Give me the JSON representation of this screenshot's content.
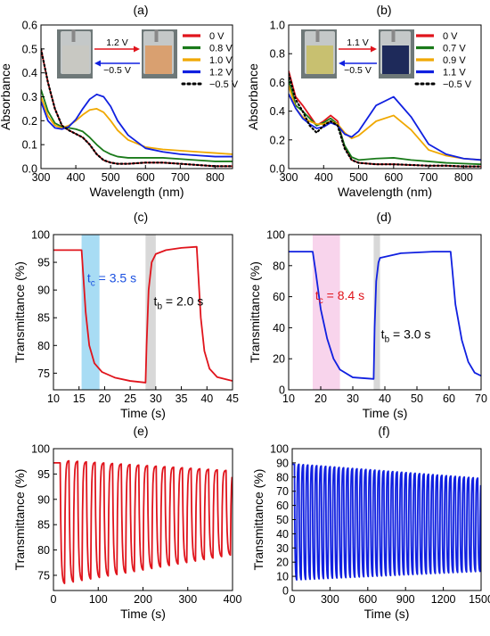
{
  "chart_data": [
    {
      "panel": "(a)",
      "type": "line",
      "xlabel": "Wavelength (nm)",
      "ylabel": "Absorbance",
      "xlim": [
        300,
        850
      ],
      "ylim": [
        0,
        0.6
      ],
      "xticks": [
        300,
        400,
        500,
        600,
        700,
        800
      ],
      "yticks": [
        0.0,
        0.1,
        0.2,
        0.3,
        0.4,
        0.5,
        0.6
      ],
      "ytick_decimals": 1,
      "grid": false,
      "legend_position": "top-right",
      "inset": {
        "top_label": "1.2 V",
        "bottom_label": "−0.5 V",
        "colors": [
          "#c8c8c2",
          "#d9a070"
        ]
      },
      "series": [
        {
          "name": "0 V",
          "color": "#e0141c",
          "dotted": false,
          "x": [
            300,
            320,
            340,
            360,
            380,
            400,
            420,
            440,
            460,
            480,
            500,
            520,
            550,
            600,
            650,
            700,
            750,
            800,
            850
          ],
          "y": [
            0.5,
            0.36,
            0.25,
            0.18,
            0.16,
            0.145,
            0.13,
            0.1,
            0.06,
            0.035,
            0.025,
            0.02,
            0.02,
            0.025,
            0.025,
            0.02,
            0.015,
            0.01,
            0.01
          ]
        },
        {
          "name": "0.8 V",
          "color": "#1a7a1a",
          "dotted": false,
          "x": [
            300,
            320,
            340,
            360,
            380,
            400,
            420,
            440,
            460,
            480,
            500,
            520,
            550,
            600,
            650,
            700,
            750,
            800,
            850
          ],
          "y": [
            0.33,
            0.24,
            0.19,
            0.175,
            0.17,
            0.165,
            0.155,
            0.13,
            0.1,
            0.075,
            0.06,
            0.05,
            0.045,
            0.045,
            0.045,
            0.04,
            0.035,
            0.03,
            0.03
          ]
        },
        {
          "name": "1.0 V",
          "color": "#f0a800",
          "dotted": false,
          "x": [
            300,
            320,
            340,
            360,
            380,
            400,
            420,
            440,
            460,
            480,
            500,
            520,
            550,
            600,
            650,
            700,
            750,
            800,
            850
          ],
          "y": [
            0.3,
            0.22,
            0.18,
            0.17,
            0.18,
            0.2,
            0.225,
            0.245,
            0.25,
            0.235,
            0.2,
            0.16,
            0.12,
            0.09,
            0.08,
            0.075,
            0.07,
            0.065,
            0.06
          ]
        },
        {
          "name": "1.2 V",
          "color": "#1020e0",
          "dotted": false,
          "x": [
            300,
            320,
            340,
            360,
            380,
            400,
            420,
            440,
            460,
            480,
            500,
            520,
            550,
            600,
            650,
            700,
            750,
            800,
            850
          ],
          "y": [
            0.28,
            0.2,
            0.17,
            0.165,
            0.175,
            0.205,
            0.25,
            0.29,
            0.31,
            0.3,
            0.26,
            0.2,
            0.14,
            0.085,
            0.07,
            0.06,
            0.055,
            0.05,
            0.05
          ]
        },
        {
          "name": "−0.5 V",
          "color": "#000000",
          "dotted": true,
          "x": [
            300,
            320,
            340,
            360,
            380,
            400,
            420,
            440,
            460,
            480,
            500,
            520,
            550,
            600,
            650,
            700,
            750,
            800,
            850
          ],
          "y": [
            0.5,
            0.36,
            0.25,
            0.18,
            0.16,
            0.145,
            0.13,
            0.1,
            0.06,
            0.035,
            0.025,
            0.02,
            0.02,
            0.025,
            0.025,
            0.02,
            0.015,
            0.01,
            0.01
          ]
        }
      ]
    },
    {
      "panel": "(b)",
      "type": "line",
      "xlabel": "Wavelength (nm)",
      "ylabel": "Absorbance",
      "xlim": [
        300,
        850
      ],
      "ylim": [
        0,
        1.0
      ],
      "xticks": [
        300,
        400,
        500,
        600,
        700,
        800
      ],
      "yticks": [
        0.0,
        0.2,
        0.4,
        0.6,
        0.8,
        1.0
      ],
      "ytick_decimals": 1,
      "grid": false,
      "legend_position": "top-right",
      "inset": {
        "top_label": "1.1 V",
        "bottom_label": "−0.5 V",
        "colors": [
          "#c8c070",
          "#1e2a5a"
        ]
      },
      "series": [
        {
          "name": "0 V",
          "color": "#e0141c",
          "dotted": false,
          "x": [
            300,
            320,
            340,
            360,
            380,
            400,
            420,
            440,
            460,
            480,
            500,
            550,
            600,
            650,
            700,
            750,
            800,
            850
          ],
          "y": [
            0.68,
            0.5,
            0.44,
            0.37,
            0.3,
            0.33,
            0.37,
            0.33,
            0.15,
            0.06,
            0.04,
            0.03,
            0.03,
            0.025,
            0.02,
            0.02,
            0.015,
            0.015
          ]
        },
        {
          "name": "0.7 V",
          "color": "#1a7a1a",
          "dotted": false,
          "x": [
            300,
            320,
            340,
            360,
            380,
            400,
            420,
            440,
            460,
            480,
            500,
            550,
            600,
            650,
            700,
            750,
            800,
            850
          ],
          "y": [
            0.62,
            0.44,
            0.4,
            0.35,
            0.3,
            0.32,
            0.35,
            0.31,
            0.16,
            0.08,
            0.06,
            0.07,
            0.075,
            0.06,
            0.05,
            0.04,
            0.035,
            0.03
          ]
        },
        {
          "name": "0.9 V",
          "color": "#f0a800",
          "dotted": false,
          "x": [
            300,
            320,
            340,
            360,
            380,
            400,
            420,
            440,
            460,
            480,
            500,
            550,
            600,
            650,
            700,
            750,
            800,
            850
          ],
          "y": [
            0.58,
            0.42,
            0.36,
            0.33,
            0.31,
            0.31,
            0.33,
            0.31,
            0.25,
            0.21,
            0.23,
            0.33,
            0.37,
            0.27,
            0.13,
            0.09,
            0.07,
            0.06
          ]
        },
        {
          "name": "1.1 V",
          "color": "#1020e0",
          "dotted": false,
          "x": [
            300,
            320,
            340,
            360,
            380,
            400,
            420,
            440,
            460,
            480,
            500,
            550,
            600,
            650,
            700,
            750,
            800,
            850
          ],
          "y": [
            0.52,
            0.42,
            0.35,
            0.31,
            0.28,
            0.29,
            0.32,
            0.3,
            0.24,
            0.22,
            0.26,
            0.44,
            0.5,
            0.36,
            0.17,
            0.1,
            0.07,
            0.06
          ]
        },
        {
          "name": "−0.5 V",
          "color": "#000000",
          "dotted": true,
          "x": [
            300,
            320,
            340,
            360,
            380,
            400,
            420,
            440,
            460,
            480,
            500,
            550,
            600,
            650,
            700,
            750,
            800,
            850
          ],
          "y": [
            0.66,
            0.48,
            0.4,
            0.3,
            0.25,
            0.3,
            0.33,
            0.3,
            0.14,
            0.06,
            0.04,
            0.03,
            0.03,
            0.025,
            0.02,
            0.02,
            0.015,
            0.015
          ]
        }
      ]
    },
    {
      "panel": "(c)",
      "type": "line",
      "xlabel": "Time (s)",
      "ylabel": "Transmittance (%)",
      "xlim": [
        10,
        45
      ],
      "ylim": [
        72,
        100
      ],
      "xticks": [
        10,
        15,
        20,
        25,
        30,
        35,
        40,
        45
      ],
      "yticks": [
        75,
        80,
        85,
        90,
        95,
        100
      ],
      "ytick_decimals": 0,
      "grid": false,
      "bands": [
        {
          "from": 15.5,
          "to": 19.0,
          "color": "#a8dcf4"
        },
        {
          "from": 28.0,
          "to": 30.0,
          "color": "#d8d8d8"
        }
      ],
      "annotations": [
        {
          "main": "t",
          "sub": "c",
          "rest": " = 3.5 s",
          "color": "#1a50e0",
          "at": [
            16.6,
            91.4
          ]
        },
        {
          "main": "t",
          "sub": "b",
          "rest": " = 2.0 s",
          "color": "#000000",
          "at": [
            29.6,
            87.2
          ]
        }
      ],
      "series": [
        {
          "name": "",
          "color": "#e0141c",
          "dotted": false,
          "x": [
            10,
            15.5,
            15.8,
            16.3,
            17.0,
            18.0,
            19.5,
            22,
            25,
            28.0,
            28.2,
            28.6,
            29.2,
            30.0,
            32,
            35,
            38,
            38.3,
            38.8,
            39.5,
            40.5,
            42,
            45
          ],
          "y": [
            97.2,
            97.2,
            93,
            86,
            80,
            76.8,
            75.2,
            74.2,
            73.6,
            73.3,
            80,
            90,
            95,
            96.5,
            97.2,
            97.6,
            97.8,
            93,
            85,
            79,
            75.8,
            74.3,
            73.6
          ]
        }
      ]
    },
    {
      "panel": "(d)",
      "type": "line",
      "xlabel": "Time (s)",
      "ylabel": "Transmittance (%)",
      "xlim": [
        10,
        70
      ],
      "ylim": [
        0,
        100
      ],
      "xticks": [
        10,
        20,
        30,
        40,
        50,
        60,
        70
      ],
      "yticks": [
        0,
        20,
        40,
        60,
        80,
        100
      ],
      "ytick_decimals": 0,
      "grid": false,
      "bands": [
        {
          "from": 17.5,
          "to": 26.0,
          "color": "#f8d4ec"
        },
        {
          "from": 36.5,
          "to": 38.5,
          "color": "#d8d8d8"
        }
      ],
      "annotations": [
        {
          "main": "t",
          "sub": "c",
          "rest": " = 8.4 s",
          "color": "#e0141c",
          "at": [
            18.3,
            58
          ]
        },
        {
          "main": "t",
          "sub": "b",
          "rest": " = 3.0 s",
          "color": "#000000",
          "at": [
            38.8,
            33
          ]
        }
      ],
      "series": [
        {
          "name": "",
          "color": "#1020e0",
          "dotted": false,
          "x": [
            10,
            17.5,
            18.5,
            20,
            22,
            24,
            26,
            30,
            36.5,
            36.8,
            37.3,
            38.0,
            38.5,
            45,
            55,
            60.5,
            61.0,
            62,
            64,
            66,
            68,
            70
          ],
          "y": [
            89,
            89,
            75,
            52,
            33,
            20,
            13,
            8,
            7,
            40,
            70,
            82,
            85,
            88,
            89,
            89,
            78,
            55,
            32,
            18,
            11,
            9
          ]
        }
      ]
    },
    {
      "panel": "(e)",
      "type": "line",
      "xlabel": "Time (s)",
      "ylabel": "Transmittance (%)",
      "xlim": [
        0,
        400
      ],
      "ylim": [
        72,
        100
      ],
      "xticks": [
        0,
        100,
        200,
        300,
        400
      ],
      "yticks": [
        75,
        80,
        85,
        90,
        95,
        100
      ],
      "ytick_decimals": 0,
      "grid": false,
      "cycling": {
        "start": 15,
        "period": 19.5,
        "on_fraction": 0.5,
        "cycles": 20,
        "initial": 97.2,
        "high_start": 97.6,
        "high_end": 95.6,
        "low_start": 73.4,
        "low_end": 79.0
      },
      "series": [
        {
          "name": "",
          "color": "#e0141c",
          "dotted": false,
          "x": [],
          "y": []
        }
      ]
    },
    {
      "panel": "(f)",
      "type": "line",
      "xlabel": "Time (s)",
      "ylabel": "Transmittance (%)",
      "xlim": [
        0,
        1500
      ],
      "ylim": [
        0,
        100
      ],
      "xticks": [
        0,
        300,
        600,
        900,
        1200,
        1500
      ],
      "yticks": [
        0,
        10,
        20,
        30,
        40,
        50,
        60,
        70,
        80,
        90,
        100
      ],
      "ytick_decimals": 0,
      "grid": false,
      "cycling": {
        "start": 18,
        "period": 35.5,
        "on_fraction": 0.5,
        "cycles": 42,
        "initial": 89,
        "high_start": 89,
        "high_end": 79,
        "low_start": 7.5,
        "low_end": 13.5
      },
      "series": [
        {
          "name": "",
          "color": "#1020e0",
          "dotted": false,
          "x": [],
          "y": []
        }
      ]
    }
  ]
}
